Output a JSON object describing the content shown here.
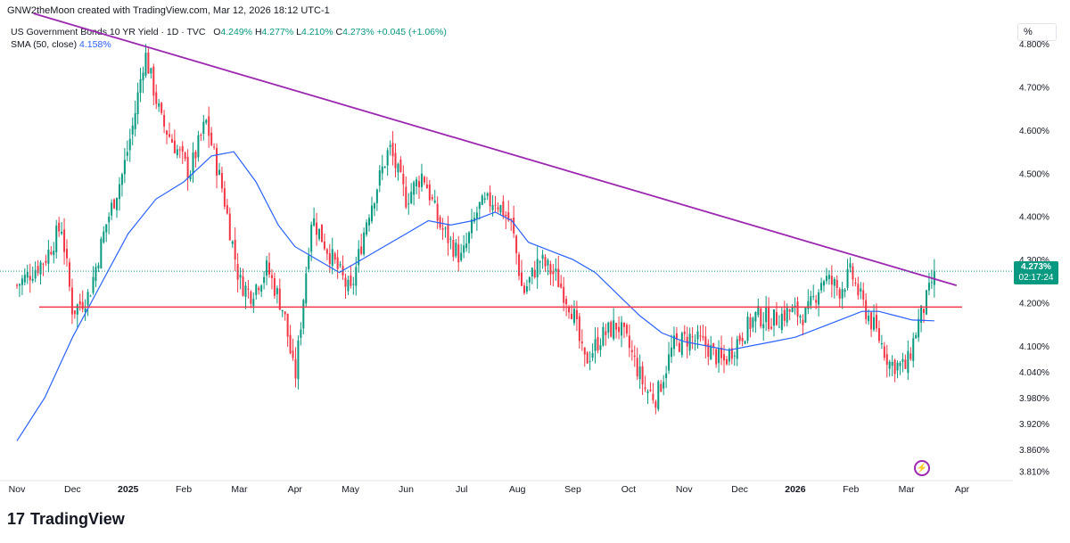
{
  "header": {
    "credit": "GNW2theMoon created with TradingView.com, Mar 12, 2026 18:12 UTC-1",
    "symbol": "US Government Bonds 10 YR Yield · 1D · TVC",
    "open_label": "O",
    "open": "4.249%",
    "high_label": "H",
    "high": "4.277%",
    "low_label": "L",
    "low": "4.210%",
    "close_label": "C",
    "close": "4.273%",
    "change": "+0.045 (+1.06%)",
    "sma_label": "SMA (50, close)",
    "sma_value": "4.158%"
  },
  "scale_button": "%",
  "price_label": {
    "price": "4.273%",
    "countdown": "02:17:24"
  },
  "footer": {
    "logo": "17",
    "name": "TradingView"
  },
  "colors": {
    "up": "#089981",
    "down": "#f23645",
    "sma": "#2962ff",
    "trendline": "#9c27b0",
    "support": "#f23645"
  },
  "chart_data": {
    "type": "candlestick",
    "title": "US Government Bonds 10 YR Yield · 1D · TVC",
    "y_ticks": [
      "4.800%",
      "4.700%",
      "4.600%",
      "4.500%",
      "4.400%",
      "4.300%",
      "4.200%",
      "4.100%",
      "4.040%",
      "3.980%",
      "3.920%",
      "3.860%",
      "3.810%"
    ],
    "y_tick_values": [
      4.8,
      4.7,
      4.6,
      4.5,
      4.4,
      4.3,
      4.2,
      4.1,
      4.04,
      3.98,
      3.92,
      3.86,
      3.81
    ],
    "ylim": [
      3.79,
      4.86
    ],
    "x_ticks": [
      "Nov",
      "Dec",
      "2025",
      "Feb",
      "Mar",
      "Apr",
      "May",
      "Jun",
      "Jul",
      "Aug",
      "Sep",
      "Oct",
      "Nov",
      "Dec",
      "2026",
      "Feb",
      "Mar",
      "Apr"
    ],
    "x_tick_months": [
      0,
      1,
      2,
      3,
      4,
      5,
      6,
      7,
      8,
      9,
      10,
      11,
      12,
      13,
      14,
      15,
      16,
      17
    ],
    "bold_ticks": [
      "2025",
      "2026"
    ],
    "close_path": [
      [
        0.0,
        4.24
      ],
      [
        0.5,
        4.3
      ],
      [
        0.8,
        4.38
      ],
      [
        1.0,
        4.18
      ],
      [
        1.3,
        4.22
      ],
      [
        1.6,
        4.38
      ],
      [
        1.9,
        4.5
      ],
      [
        2.1,
        4.62
      ],
      [
        2.3,
        4.78
      ],
      [
        2.6,
        4.62
      ],
      [
        2.9,
        4.55
      ],
      [
        3.1,
        4.5
      ],
      [
        3.4,
        4.62
      ],
      [
        3.7,
        4.46
      ],
      [
        4.0,
        4.25
      ],
      [
        4.2,
        4.22
      ],
      [
        4.5,
        4.28
      ],
      [
        4.8,
        4.18
      ],
      [
        5.0,
        4.02
      ],
      [
        5.3,
        4.4
      ],
      [
        5.6,
        4.32
      ],
      [
        6.0,
        4.22
      ],
      [
        6.3,
        4.4
      ],
      [
        6.7,
        4.56
      ],
      [
        7.0,
        4.44
      ],
      [
        7.3,
        4.5
      ],
      [
        7.6,
        4.38
      ],
      [
        8.0,
        4.3
      ],
      [
        8.3,
        4.42
      ],
      [
        8.6,
        4.44
      ],
      [
        8.9,
        4.38
      ],
      [
        9.1,
        4.22
      ],
      [
        9.4,
        4.3
      ],
      [
        9.7,
        4.26
      ],
      [
        10.0,
        4.18
      ],
      [
        10.2,
        4.06
      ],
      [
        10.5,
        4.12
      ],
      [
        10.8,
        4.15
      ],
      [
        11.0,
        4.1
      ],
      [
        11.3,
        4.0
      ],
      [
        11.5,
        3.98
      ],
      [
        11.8,
        4.1
      ],
      [
        12.1,
        4.12
      ],
      [
        12.4,
        4.1
      ],
      [
        12.7,
        4.06
      ],
      [
        13.0,
        4.12
      ],
      [
        13.3,
        4.17
      ],
      [
        13.6,
        4.16
      ],
      [
        13.9,
        4.18
      ],
      [
        14.2,
        4.17
      ],
      [
        14.5,
        4.26
      ],
      [
        14.8,
        4.23
      ],
      [
        15.0,
        4.27
      ],
      [
        15.2,
        4.2
      ],
      [
        15.5,
        4.12
      ],
      [
        15.7,
        4.06
      ],
      [
        16.0,
        4.05
      ],
      [
        16.2,
        4.15
      ],
      [
        16.4,
        4.22
      ],
      [
        16.5,
        4.273
      ]
    ],
    "sma_path": [
      [
        0.0,
        3.88
      ],
      [
        0.5,
        3.98
      ],
      [
        1.0,
        4.12
      ],
      [
        1.5,
        4.24
      ],
      [
        2.0,
        4.36
      ],
      [
        2.5,
        4.44
      ],
      [
        3.0,
        4.48
      ],
      [
        3.5,
        4.54
      ],
      [
        3.9,
        4.55
      ],
      [
        4.3,
        4.48
      ],
      [
        4.7,
        4.38
      ],
      [
        5.0,
        4.33
      ],
      [
        5.4,
        4.3
      ],
      [
        5.8,
        4.27
      ],
      [
        6.2,
        4.3
      ],
      [
        6.6,
        4.33
      ],
      [
        7.0,
        4.36
      ],
      [
        7.4,
        4.39
      ],
      [
        7.8,
        4.38
      ],
      [
        8.2,
        4.39
      ],
      [
        8.6,
        4.41
      ],
      [
        8.9,
        4.39
      ],
      [
        9.2,
        4.34
      ],
      [
        9.6,
        4.32
      ],
      [
        10.0,
        4.3
      ],
      [
        10.4,
        4.27
      ],
      [
        10.8,
        4.22
      ],
      [
        11.2,
        4.17
      ],
      [
        11.6,
        4.13
      ],
      [
        12.0,
        4.11
      ],
      [
        12.4,
        4.1
      ],
      [
        12.8,
        4.09
      ],
      [
        13.2,
        4.1
      ],
      [
        13.6,
        4.11
      ],
      [
        14.0,
        4.12
      ],
      [
        14.4,
        4.14
      ],
      [
        14.8,
        4.16
      ],
      [
        15.2,
        4.18
      ],
      [
        15.5,
        4.18
      ],
      [
        15.8,
        4.17
      ],
      [
        16.1,
        4.16
      ],
      [
        16.5,
        4.158
      ]
    ],
    "trendline": {
      "from": [
        0.3,
        4.87
      ],
      "to": [
        16.9,
        4.24
      ]
    },
    "support_line": {
      "from": [
        0.4,
        4.19
      ],
      "to": [
        17.0,
        4.19
      ]
    },
    "last_price": 4.273
  }
}
